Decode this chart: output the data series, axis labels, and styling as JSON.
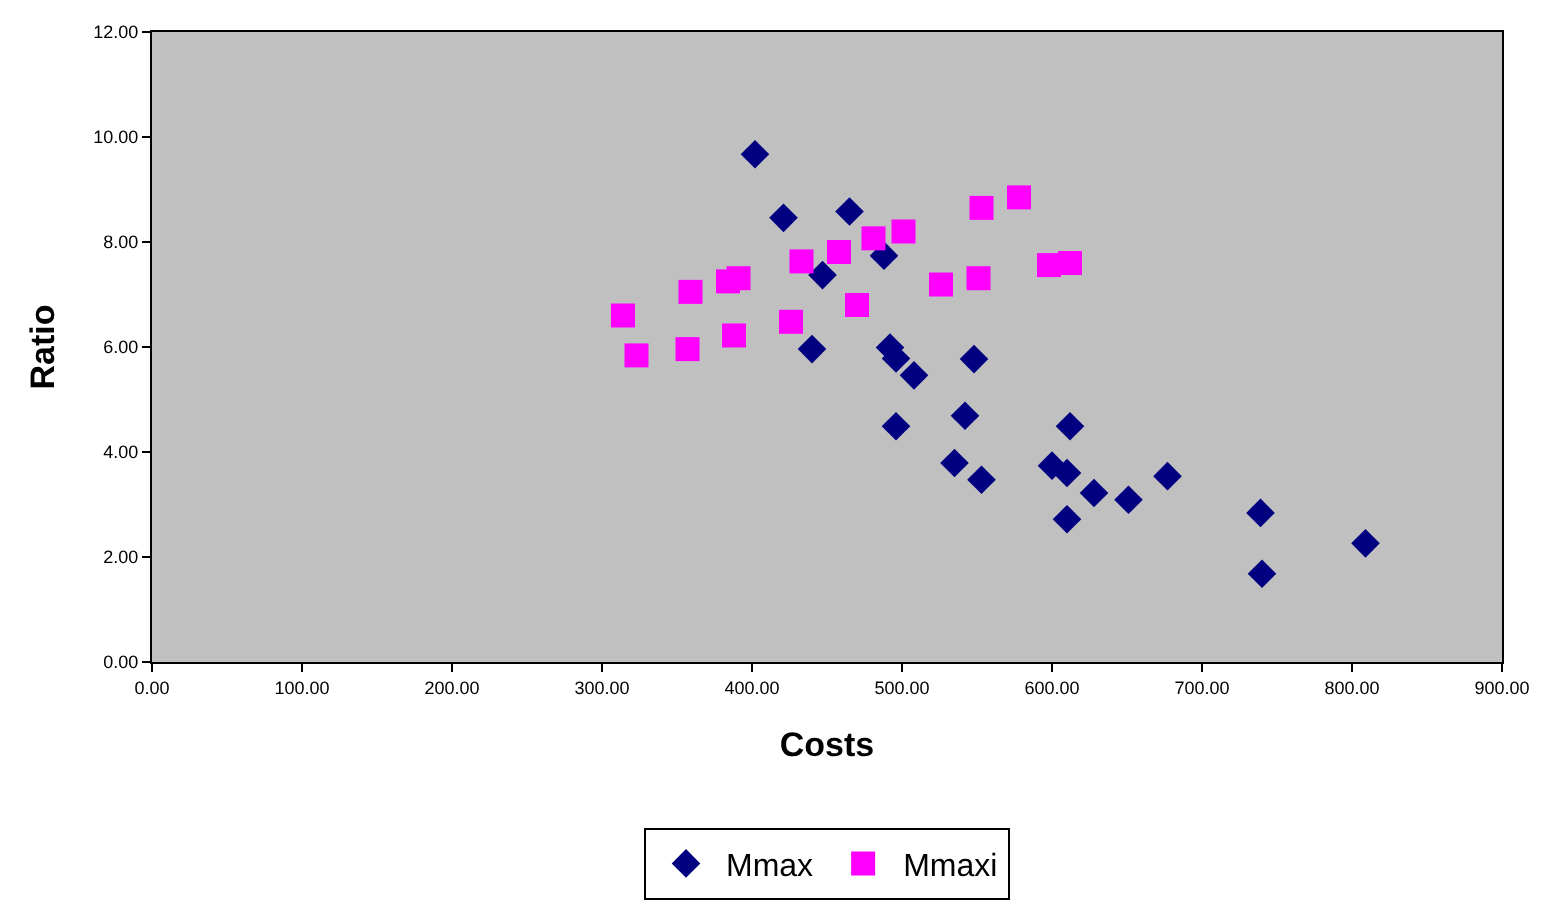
{
  "chart_data": {
    "type": "scatter",
    "xlabel": "Costs",
    "ylabel": "Ratio",
    "xlim": [
      0,
      900
    ],
    "ylim": [
      0,
      12
    ],
    "xticks": [
      {
        "value": 0,
        "label": "0.00"
      },
      {
        "value": 100,
        "label": "100.00"
      },
      {
        "value": 200,
        "label": "200.00"
      },
      {
        "value": 300,
        "label": "300.00"
      },
      {
        "value": 400,
        "label": "400.00"
      },
      {
        "value": 500,
        "label": "500.00"
      },
      {
        "value": 600,
        "label": "600.00"
      },
      {
        "value": 700,
        "label": "700.00"
      },
      {
        "value": 800,
        "label": "800.00"
      },
      {
        "value": 900,
        "label": "900.00"
      }
    ],
    "yticks": [
      {
        "value": 0,
        "label": "0.00"
      },
      {
        "value": 2,
        "label": "2.00"
      },
      {
        "value": 4,
        "label": "4.00"
      },
      {
        "value": 6,
        "label": "6.00"
      },
      {
        "value": 8,
        "label": "8.00"
      },
      {
        "value": 10,
        "label": "10.00"
      },
      {
        "value": 12,
        "label": "12.00"
      }
    ],
    "grid": false,
    "legend": "bottom",
    "series": [
      {
        "name": "Mmax",
        "color": "#000080",
        "marker": "diamond",
        "x": [
          402,
          421,
          465,
          488,
          447,
          440,
          492,
          496,
          508,
          548,
          496,
          542,
          535,
          553,
          612,
          600,
          610,
          628,
          651,
          677,
          610,
          739,
          740,
          809
        ],
        "values": [
          9.67,
          8.46,
          8.58,
          7.74,
          7.37,
          5.96,
          5.99,
          5.78,
          5.46,
          5.77,
          4.49,
          4.69,
          3.79,
          3.47,
          4.49,
          3.74,
          3.6,
          3.22,
          3.09,
          3.54,
          2.72,
          2.84,
          1.68,
          2.26
        ]
      },
      {
        "name": "Mmaxi",
        "color": "#ff00ff",
        "marker": "square",
        "x": [
          314,
          323,
          359,
          357,
          384,
          391,
          388,
          426,
          433,
          458,
          470,
          481,
          501,
          526,
          551,
          553,
          578,
          598,
          612
        ],
        "values": [
          6.6,
          5.84,
          7.05,
          5.96,
          7.25,
          7.31,
          6.22,
          6.48,
          7.63,
          7.81,
          6.8,
          8.07,
          8.2,
          7.19,
          7.31,
          8.65,
          8.85,
          7.56,
          7.6
        ]
      }
    ]
  }
}
